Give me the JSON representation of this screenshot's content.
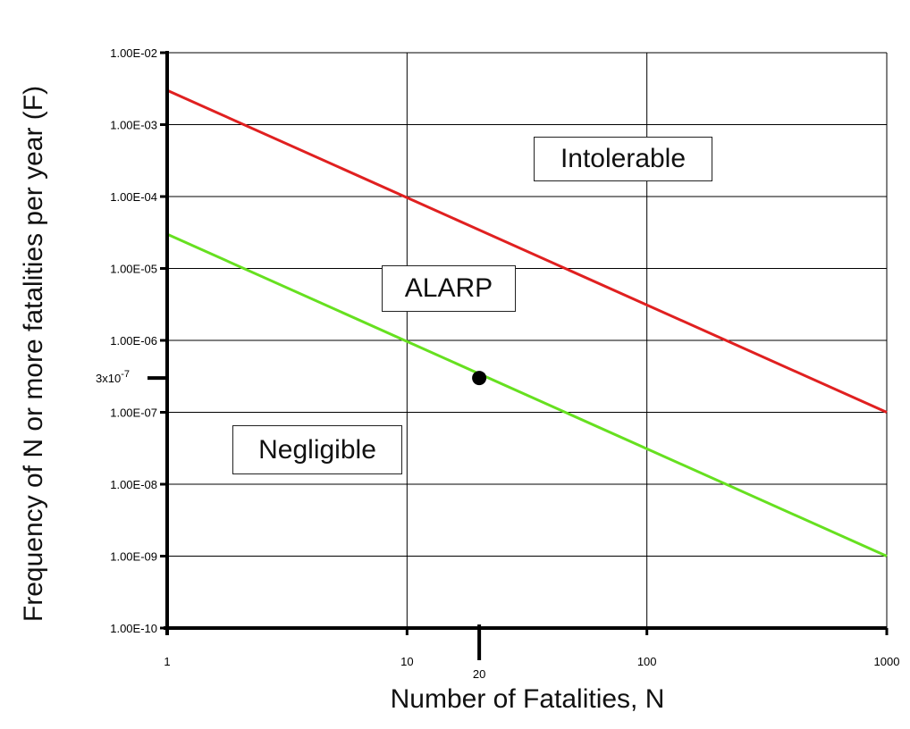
{
  "chart_data": {
    "type": "line",
    "xlabel": "Number of Fatalities, N",
    "ylabel": "Frequency of N or more fatalities per year (F)",
    "x_scale": "log",
    "y_scale": "log",
    "xlim": [
      1,
      1000
    ],
    "ylim": [
      1e-10,
      0.01
    ],
    "x_ticks": [
      {
        "value": 1,
        "label": "1"
      },
      {
        "value": 10,
        "label": "10"
      },
      {
        "value": 100,
        "label": "100"
      },
      {
        "value": 1000,
        "label": "1000"
      }
    ],
    "x_extra_tick": {
      "value": 20,
      "label": "20"
    },
    "y_ticks": [
      {
        "value": 0.01,
        "label": "1.00E-02"
      },
      {
        "value": 0.001,
        "label": "1.00E-03"
      },
      {
        "value": 0.0001,
        "label": "1.00E-04"
      },
      {
        "value": 1e-05,
        "label": "1.00E-05"
      },
      {
        "value": 1e-06,
        "label": "1.00E-06"
      },
      {
        "value": 1e-07,
        "label": "1.00E-07"
      },
      {
        "value": 1e-08,
        "label": "1.00E-08"
      },
      {
        "value": 1e-09,
        "label": "1.00E-09"
      },
      {
        "value": 1e-10,
        "label": "1.00E-10"
      }
    ],
    "y_extra_tick": {
      "value": 3e-07,
      "label": "3x10",
      "exponent": "-7"
    },
    "grid": true,
    "series": [
      {
        "color": "#e02020",
        "x": [
          1,
          1000
        ],
        "y": [
          0.003,
          1e-07
        ]
      },
      {
        "color": "#66e020",
        "x": [
          1,
          1000
        ],
        "y": [
          3e-05,
          1e-09
        ]
      }
    ],
    "point": {
      "x": 20,
      "y": 3e-07,
      "color": "#000000"
    },
    "regions": [
      {
        "label": "Intolerable"
      },
      {
        "label": "ALARP"
      },
      {
        "label": "Negligible"
      }
    ]
  }
}
